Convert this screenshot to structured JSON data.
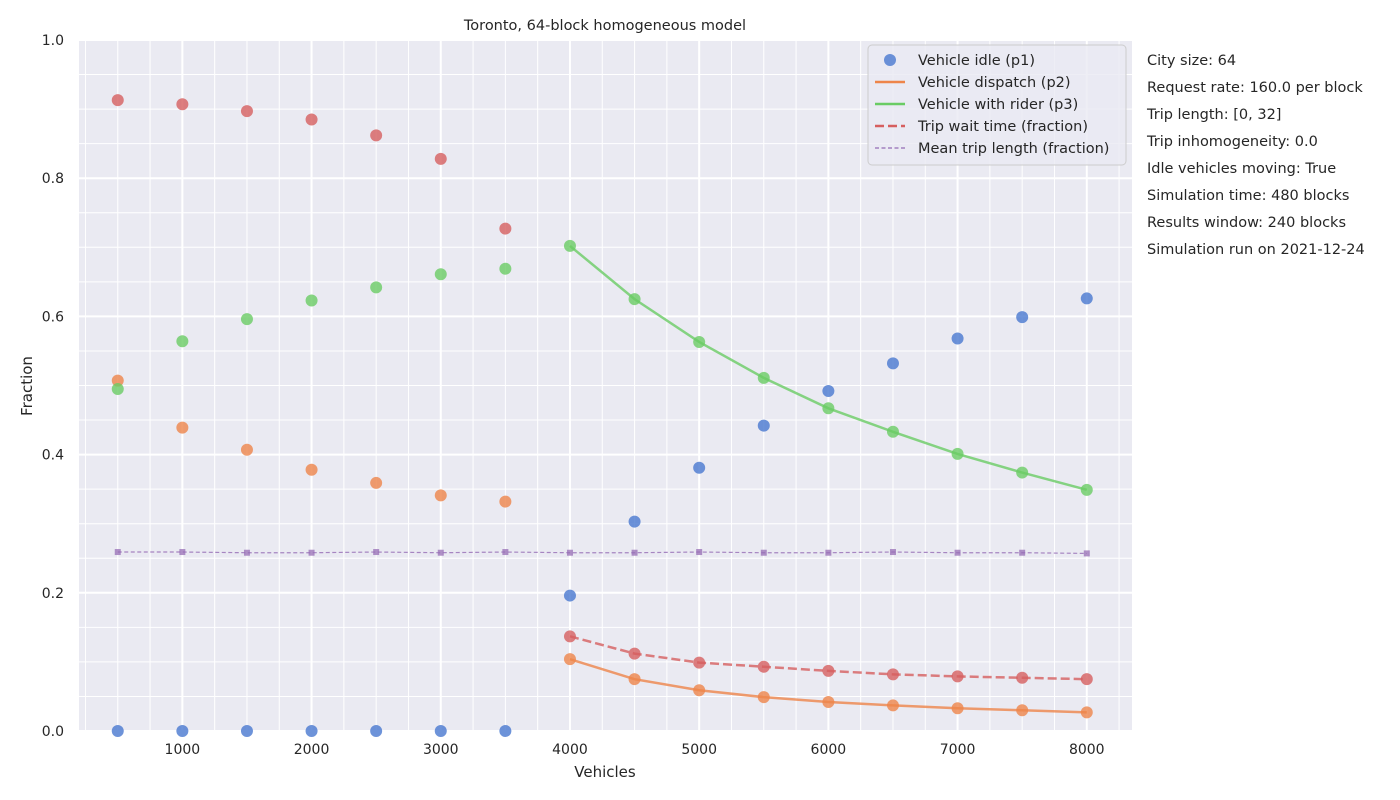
{
  "chart_data": {
    "type": "scatter",
    "title": "Toronto, 64-block homogeneous model",
    "xlabel": "Vehicles",
    "ylabel": "Fraction",
    "xlim": [
      200,
      8350
    ],
    "ylim": [
      0,
      1
    ],
    "x_ticks": [
      1000,
      2000,
      3000,
      4000,
      5000,
      6000,
      7000,
      8000
    ],
    "y_ticks": [
      0.0,
      0.2,
      0.4,
      0.6,
      0.8,
      1.0
    ],
    "y_tick_labels": [
      "0.0",
      "0.2",
      "0.4",
      "0.6",
      "0.8",
      "1.0"
    ],
    "grid": true,
    "legend_position": "top-right",
    "x": [
      500,
      1000,
      1500,
      2000,
      2500,
      3000,
      3500,
      4000,
      4500,
      5000,
      5500,
      6000,
      6500,
      7000,
      7500,
      8000
    ],
    "series": [
      {
        "name": "Vehicle idle (p1)",
        "color": "#4878d0",
        "marker": "circle",
        "values": [
          0.0,
          0.0,
          0.0,
          0.0,
          0.0,
          0.0,
          0.0,
          0.196,
          0.303,
          0.381,
          0.442,
          0.492,
          0.532,
          0.568,
          0.599,
          0.626
        ],
        "fit": null
      },
      {
        "name": "Vehicle dispatch (p2)",
        "color": "#ee854a",
        "marker": "circle",
        "values": [
          0.507,
          0.439,
          0.407,
          0.378,
          0.359,
          0.341,
          0.332,
          0.104,
          0.075,
          0.059,
          0.049,
          0.042,
          0.037,
          0.033,
          0.03,
          0.027
        ],
        "fit": {
          "style": "solid",
          "x": [
            4000,
            4500,
            5000,
            5500,
            6000,
            6500,
            7000,
            7500,
            8000
          ],
          "y": [
            0.104,
            0.075,
            0.059,
            0.049,
            0.042,
            0.037,
            0.033,
            0.03,
            0.027
          ]
        }
      },
      {
        "name": "Vehicle with rider (p3)",
        "color": "#6acc64",
        "marker": "circle",
        "values": [
          0.495,
          0.564,
          0.596,
          0.623,
          0.642,
          0.661,
          0.669,
          0.702,
          0.625,
          0.563,
          0.511,
          0.467,
          0.433,
          0.401,
          0.374,
          0.349
        ],
        "fit": {
          "style": "solid",
          "x": [
            4000,
            4500,
            5000,
            5500,
            6000,
            6500,
            7000,
            7500,
            8000
          ],
          "y": [
            0.702,
            0.625,
            0.563,
            0.511,
            0.467,
            0.433,
            0.401,
            0.374,
            0.349
          ]
        }
      },
      {
        "name": "Trip wait time (fraction)",
        "color": "#d65f5f",
        "marker": "circle",
        "values": [
          0.913,
          0.907,
          0.897,
          0.885,
          0.862,
          0.828,
          0.727,
          0.137,
          0.112,
          0.099,
          0.093,
          0.087,
          0.082,
          0.079,
          0.077,
          0.075
        ],
        "fit": {
          "style": "dashed",
          "x": [
            4000,
            4500,
            5000,
            5500,
            6000,
            6500,
            7000,
            7500,
            8000
          ],
          "y": [
            0.137,
            0.112,
            0.099,
            0.093,
            0.087,
            0.082,
            0.079,
            0.077,
            0.075
          ]
        }
      },
      {
        "name": "Mean trip length (fraction)",
        "color": "#956cb4",
        "marker": "square",
        "values": [
          0.259,
          0.259,
          0.258,
          0.258,
          0.259,
          0.258,
          0.259,
          0.258,
          0.258,
          0.259,
          0.258,
          0.258,
          0.259,
          0.258,
          0.258,
          0.257
        ],
        "fit": {
          "style": "thin-dashed",
          "x": [
            500,
            1000,
            1500,
            2000,
            2500,
            3000,
            3500,
            4000,
            4500,
            5000,
            5500,
            6000,
            6500,
            7000,
            7500,
            8000
          ],
          "y": [
            0.259,
            0.259,
            0.258,
            0.258,
            0.259,
            0.258,
            0.259,
            0.258,
            0.258,
            0.259,
            0.258,
            0.258,
            0.259,
            0.258,
            0.258,
            0.257
          ]
        }
      }
    ],
    "annotations": [
      "City size: 64",
      "Request rate: 160.0 per block",
      "Trip length: [0, 32]",
      "Trip inhomogeneity: 0.0",
      "Idle vehicles moving: True",
      "Simulation time: 480 blocks",
      "Results window: 240 blocks",
      "Simulation run on 2021-12-24"
    ]
  }
}
